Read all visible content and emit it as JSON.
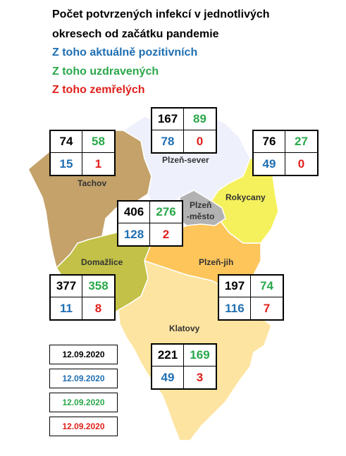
{
  "legend": {
    "title_line1": "Počet potvrzených infekcí v jednotlivých",
    "title_line2": "okresech od začátku pandemie",
    "positive": "Z toho aktuálně pozitivních",
    "recovered": "Z toho uzdravených",
    "deceased": "Z toho zemřelých"
  },
  "colors": {
    "total": "#000000",
    "positive": "#1f6fb2",
    "recovered": "#2aa84a",
    "deceased": "#e0201b",
    "plzen_sever": "#eef0fb",
    "tachov": "#c4a26a",
    "rokycany": "#f5f15c",
    "plzen_mesto": "#b2b2b2",
    "plzen_jih": "#fdc55a",
    "domazlice": "#c3c147",
    "klatovy": "#fde4a0"
  },
  "regions": {
    "plzen_sever": {
      "name": "Plzeň-sever",
      "total": "167",
      "recovered": "89",
      "positive": "78",
      "deceased": "0"
    },
    "tachov": {
      "name": "Tachov",
      "total": "74",
      "recovered": "58",
      "positive": "15",
      "deceased": "1"
    },
    "rokycany": {
      "name": "Rokycany",
      "total": "76",
      "recovered": "27",
      "positive": "49",
      "deceased": "0"
    },
    "plzen_mesto": {
      "name_line1": "Plzeň",
      "name_line2": "-město",
      "total": "406",
      "recovered": "276",
      "positive": "128",
      "deceased": "2"
    },
    "domazlice": {
      "name": "Domažlice",
      "total": "377",
      "recovered": "358",
      "positive": "11",
      "deceased": "8"
    },
    "plzen_jih": {
      "name": "Plzeň-jih",
      "total": "197",
      "recovered": "74",
      "positive": "116",
      "deceased": "7"
    },
    "klatovy": {
      "name": "Klatovy",
      "total": "221",
      "recovered": "169",
      "positive": "49",
      "deceased": "3"
    }
  },
  "dates": [
    "12.09.2020",
    "12.09.2020",
    "12.09.2020",
    "12.09.2020"
  ]
}
